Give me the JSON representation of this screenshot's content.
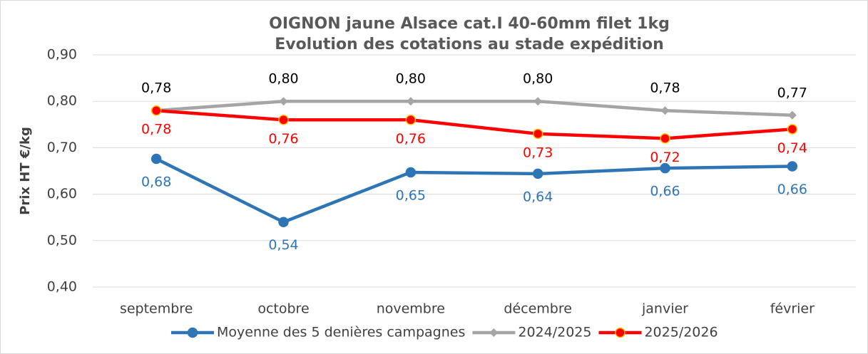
{
  "chart_data": {
    "type": "line",
    "title": [
      "OIGNON jaune Alsace cat.I 40-60mm filet 1kg",
      "Evolution des cotations au stade expédition"
    ],
    "y_label": "Prix HT €/kg",
    "categories": [
      "septembre",
      "octobre",
      "novembre",
      "décembre",
      "janvier",
      "février"
    ],
    "ylim": [
      0.4,
      0.9
    ],
    "yticks": [
      {
        "value": 0.4,
        "label": "0,40"
      },
      {
        "value": 0.5,
        "label": "0,50"
      },
      {
        "value": 0.6,
        "label": "0,60"
      },
      {
        "value": 0.7,
        "label": "0,70"
      },
      {
        "value": 0.8,
        "label": "0,80"
      },
      {
        "value": 0.9,
        "label": "0,90"
      }
    ],
    "grid": true,
    "legend": "bottom",
    "series": [
      {
        "name": "Moyenne des 5 denières campagnes",
        "color": "#2e75b6",
        "marker": "circle",
        "label_color": "#2e75b6",
        "label_position": "below",
        "values": [
          0.676,
          0.54,
          0.647,
          0.644,
          0.656,
          0.66
        ],
        "value_labels": [
          "0,68",
          "0,54",
          "0,65",
          "0,64",
          "0,66",
          "0,66"
        ]
      },
      {
        "name": "2024/2025",
        "color": "#a5a5a5",
        "marker": "diamond",
        "label_color": "#000000",
        "label_position": "above",
        "values": [
          0.78,
          0.8,
          0.8,
          0.8,
          0.78,
          0.77
        ],
        "value_labels": [
          "0,78",
          "0,80",
          "0,80",
          "0,80",
          "0,78",
          "0,77"
        ]
      },
      {
        "name": "2025/2026",
        "color": "#ff0000",
        "marker": "circle",
        "label_color": "#ff0000",
        "label_position": "below",
        "values": [
          0.78,
          0.76,
          0.76,
          0.73,
          0.72,
          0.74
        ],
        "value_labels": [
          "0,78",
          "0,76",
          "0,76",
          "0,73",
          "0,72",
          "0,74"
        ]
      }
    ]
  }
}
